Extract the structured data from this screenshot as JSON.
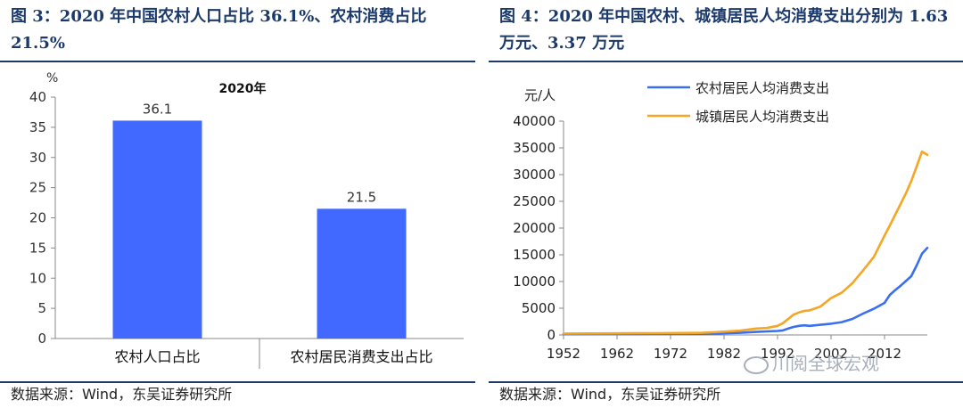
{
  "left": {
    "title": "图 3：2020 年中国农村人口占比 36.1%、农村消费占比 21.5%",
    "source": "数据来源：Wind，东吴证券研究所"
  },
  "right": {
    "title": "图 4：2020 年中国农村、城镇居民人均消费支出分别为 1.63 万元、3.37 万元",
    "source": "数据来源：Wind，东吴证券研究所"
  },
  "watermark": "川阅全球宏观",
  "chart_data": [
    {
      "type": "bar",
      "title": "2020年",
      "ylabel": "%",
      "categories": [
        "农村人口占比",
        "农村居民消费支出占比"
      ],
      "values": [
        36.1,
        21.5
      ],
      "data_labels": [
        "36.1",
        "21.5"
      ],
      "ylim": [
        0,
        40
      ],
      "yticks": [
        0,
        5,
        10,
        15,
        20,
        25,
        30,
        35,
        40
      ],
      "bar_color": "#4169ff",
      "grid": false
    },
    {
      "type": "line",
      "ylabel": "元/人",
      "ylim": [
        0,
        40000
      ],
      "yticks": [
        0,
        5000,
        10000,
        15000,
        20000,
        25000,
        30000,
        35000,
        40000
      ],
      "xlim": [
        1952,
        2020
      ],
      "xticks": [
        1952,
        1962,
        1972,
        1982,
        1992,
        2002,
        2012
      ],
      "legend_position": "top",
      "grid": false,
      "series": [
        {
          "name": "农村居民人均消费支出",
          "color": "#3a6ff0",
          "x": [
            1952,
            1957,
            1962,
            1965,
            1970,
            1975,
            1978,
            1980,
            1985,
            1988,
            1990,
            1992,
            1993,
            1994,
            1995,
            1996,
            1997,
            1998,
            2000,
            2002,
            2004,
            2006,
            2008,
            2010,
            2012,
            2013,
            2014,
            2015,
            2016,
            2017,
            2018,
            2019,
            2020
          ],
          "y": [
            150,
            180,
            180,
            190,
            210,
            230,
            240,
            270,
            400,
            560,
            660,
            750,
            850,
            1200,
            1500,
            1700,
            1800,
            1700,
            1900,
            2100,
            2400,
            3000,
            4000,
            4900,
            6000,
            7500,
            8400,
            9200,
            10100,
            11000,
            13000,
            15200,
            16300
          ]
        },
        {
          "name": "城镇居民人均消费支出",
          "color": "#f5a623",
          "x": [
            1952,
            1957,
            1962,
            1965,
            1970,
            1975,
            1978,
            1980,
            1985,
            1988,
            1990,
            1992,
            1993,
            1994,
            1995,
            1996,
            1997,
            1998,
            2000,
            2002,
            2004,
            2006,
            2008,
            2010,
            2012,
            2013,
            2014,
            2015,
            2016,
            2017,
            2018,
            2019,
            2020
          ],
          "y": [
            250,
            280,
            300,
            310,
            330,
            360,
            400,
            500,
            800,
            1200,
            1300,
            1700,
            2200,
            3000,
            3800,
            4200,
            4500,
            4600,
            5300,
            6900,
            7900,
            9700,
            12100,
            14600,
            18600,
            20500,
            22500,
            24500,
            26500,
            28800,
            31500,
            34300,
            33700
          ]
        }
      ]
    }
  ]
}
